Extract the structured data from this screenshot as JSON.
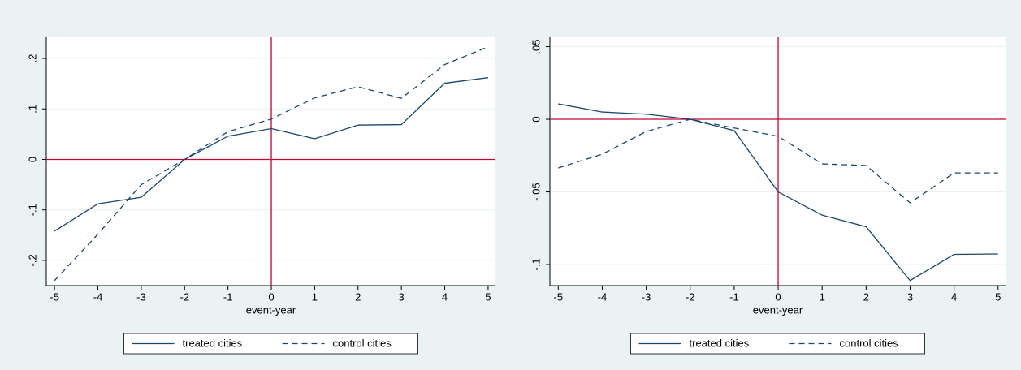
{
  "chart_data": [
    {
      "type": "line",
      "xlabel": "event-year",
      "x": [
        -5,
        -4,
        -3,
        -2,
        -1,
        0,
        1,
        2,
        3,
        4,
        5
      ],
      "series": [
        {
          "name": "treated cities",
          "color": "#1a476f",
          "linestyle": "solid",
          "values": [
            -0.142,
            -0.088,
            -0.075,
            0.0,
            0.046,
            0.061,
            0.041,
            0.068,
            0.069,
            0.151,
            0.162
          ]
        },
        {
          "name": "control cities",
          "color": "#1a476f",
          "linestyle": "dashed",
          "values": [
            -0.24,
            -0.148,
            -0.05,
            0.0,
            0.055,
            0.08,
            0.122,
            0.144,
            0.121,
            0.188,
            0.223
          ]
        }
      ],
      "xlim": [
        -5.19,
        5.17
      ],
      "ylim": [
        -0.25,
        0.2435
      ],
      "xticks": [
        -5,
        -4,
        -3,
        -2,
        -1,
        0,
        1,
        2,
        3,
        4,
        5
      ],
      "yticks": [
        {
          "value": -0.2,
          "label": "-.2"
        },
        {
          "value": -0.1,
          "label": "-.1"
        },
        0,
        {
          "value": 0.1,
          "label": ".1"
        },
        {
          "value": 0.2,
          "label": ".2"
        }
      ],
      "xline": 0,
      "yline": 0,
      "refline_color": "#c10534",
      "grid": true
    },
    {
      "type": "line",
      "xlabel": "event-year",
      "x": [
        -5,
        -4,
        -3,
        -2,
        -1,
        0,
        1,
        2,
        3,
        4,
        5
      ],
      "series": [
        {
          "name": "treated cities",
          "color": "#1a476f",
          "linestyle": "solid",
          "values": [
            0.0106,
            0.005,
            0.0035,
            0.0,
            -0.0078,
            -0.05,
            -0.066,
            -0.074,
            -0.111,
            -0.093,
            -0.0927
          ]
        },
        {
          "name": "control cities",
          "color": "#1a476f",
          "linestyle": "dashed",
          "values": [
            -0.0335,
            -0.024,
            -0.0084,
            0.0,
            -0.006,
            -0.0117,
            -0.0307,
            -0.0318,
            -0.0575,
            -0.0369,
            -0.0369
          ]
        }
      ],
      "xlim": [
        -5.19,
        5.17
      ],
      "ylim": [
        -0.1145,
        0.057
      ],
      "xticks": [
        -5,
        -4,
        -3,
        -2,
        -1,
        0,
        1,
        2,
        3,
        4,
        5
      ],
      "yticks": [
        {
          "value": -0.1,
          "label": "-.1"
        },
        {
          "value": -0.05,
          "label": "-.05"
        },
        0,
        {
          "value": 0.05,
          "label": ".05"
        }
      ],
      "xline": 0,
      "yline": 0,
      "refline_color": "#c10534",
      "grid": true
    }
  ]
}
